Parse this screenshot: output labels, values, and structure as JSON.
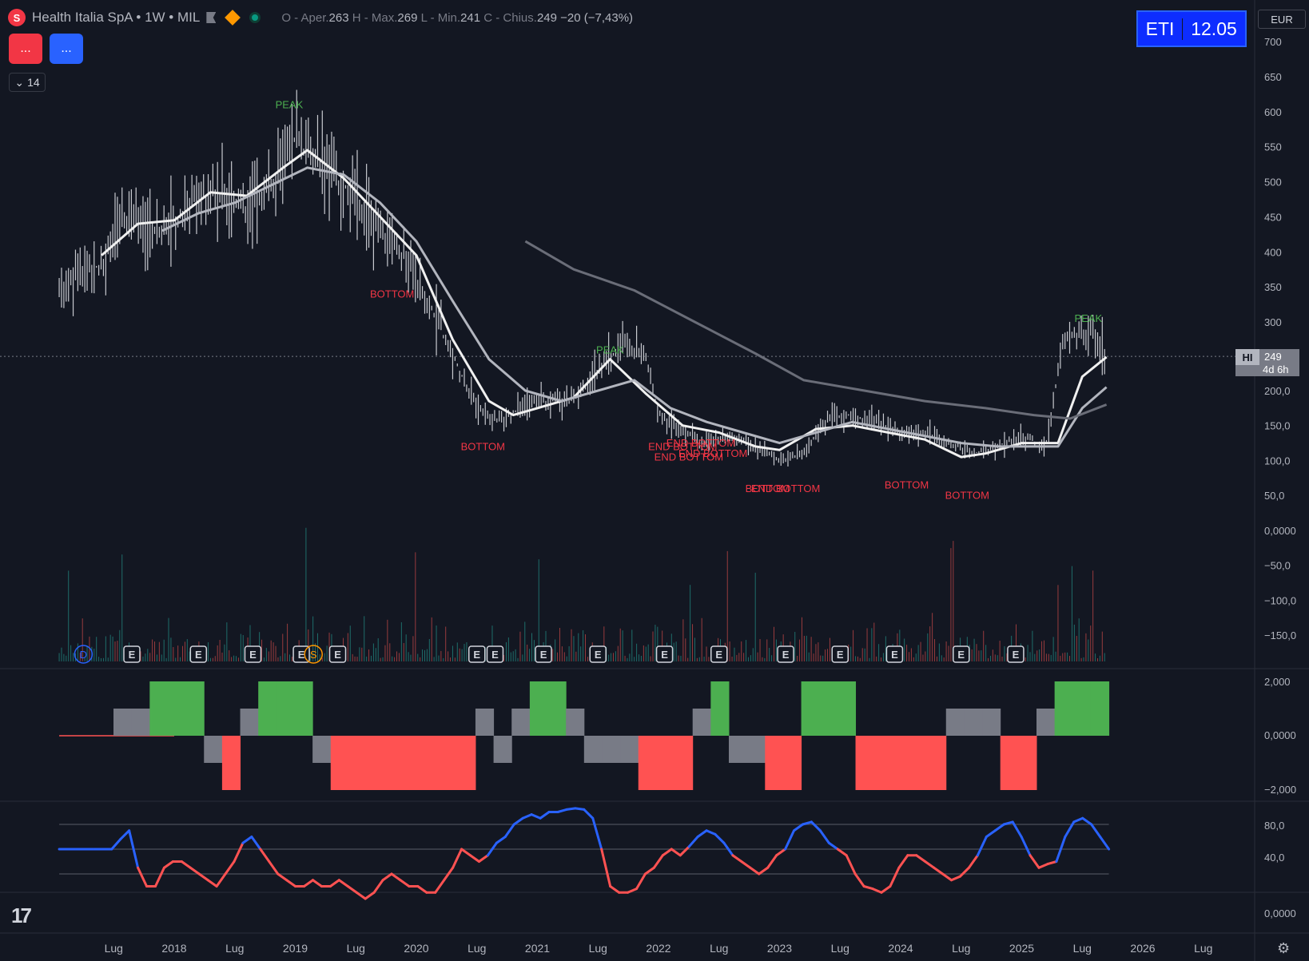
{
  "header": {
    "symbol_label": "Health Italia SpA • 1W • MIL",
    "ohlc_open_label": "O - Aper.",
    "open": "263",
    "ohlc_high_label": "H - Max.",
    "high": "269",
    "ohlc_low_label": "L - Min.",
    "low": "241",
    "ohlc_close_label": "C - Chius.",
    "close": "249",
    "change": "−20 (−7,43%)"
  },
  "buttons": {
    "red": "...",
    "blue": "..."
  },
  "indicator_toggle": "14",
  "eti_box": {
    "label": "ETI",
    "value": "12.05"
  },
  "currency": "EUR",
  "price_label": {
    "tag": "HI",
    "price": "249",
    "countdown": "4d 6h"
  },
  "colors": {
    "bg": "#131722",
    "up": "#4caf50",
    "down": "#ff5252",
    "neutral": "#787b86",
    "blue": "#2962ff",
    "ma_light": "#e6e6e6",
    "ma_mid": "#b2b5be",
    "ma_dark": "#787b86"
  },
  "chart_data": [
    {
      "type": "bar",
      "title": "Health Italia SpA • 1W • MIL",
      "y_ticks": [
        "700",
        "650",
        "600",
        "550",
        "500",
        "450",
        "400",
        "350",
        "300",
        "200,0",
        "150,0",
        "100,0",
        "50,0",
        "0,0000",
        "−50,0",
        "−100,0",
        "−150,0"
      ],
      "x_ticks": [
        "Lug",
        "2018",
        "Lug",
        "2019",
        "Lug",
        "2020",
        "Lug",
        "2021",
        "Lug",
        "2022",
        "Lug",
        "2023",
        "Lug",
        "2024",
        "Lug",
        "2025",
        "Lug",
        "2026",
        "Lug"
      ],
      "series": [
        {
          "name": "price",
          "x": [
            2017.05,
            2017.2,
            2017.4,
            2017.6,
            2017.8,
            2018.0,
            2018.2,
            2018.4,
            2018.6,
            2018.8,
            2019.0,
            2019.1,
            2019.3,
            2019.5,
            2019.7,
            2019.9,
            2020.1,
            2020.3,
            2020.5,
            2020.7,
            2020.9,
            2021.1,
            2021.3,
            2021.5,
            2021.7,
            2021.9,
            2022.0,
            2022.2,
            2022.4,
            2022.6,
            2022.8,
            2023.0,
            2023.2,
            2023.4,
            2023.6,
            2023.8,
            2024.0,
            2024.2,
            2024.4,
            2024.6,
            2024.8,
            2025.0,
            2025.2,
            2025.35,
            2025.4,
            2025.6,
            2025.7
          ],
          "values": [
            340,
            370,
            380,
            450,
            430,
            440,
            480,
            480,
            460,
            490,
            560,
            540,
            510,
            480,
            430,
            390,
            330,
            250,
            175,
            155,
            180,
            185,
            185,
            230,
            270,
            250,
            165,
            140,
            125,
            135,
            120,
            100,
            110,
            160,
            165,
            155,
            140,
            140,
            125,
            110,
            120,
            135,
            120,
            280,
            285,
            280,
            255
          ]
        },
        {
          "name": "ma_fast",
          "x": [
            2017.4,
            2017.7,
            2018.0,
            2018.3,
            2018.6,
            2018.9,
            2019.1,
            2019.4,
            2019.7,
            2020.0,
            2020.3,
            2020.6,
            2020.8,
            2021.0,
            2021.3,
            2021.6,
            2021.9,
            2022.2,
            2022.5,
            2022.8,
            2023.0,
            2023.3,
            2023.6,
            2023.9,
            2024.2,
            2024.5,
            2024.7,
            2025.0,
            2025.3,
            2025.5,
            2025.7
          ],
          "values": [
            395,
            440,
            445,
            485,
            480,
            520,
            545,
            505,
            450,
            395,
            275,
            185,
            165,
            175,
            190,
            245,
            195,
            150,
            140,
            120,
            115,
            145,
            150,
            140,
            130,
            105,
            110,
            125,
            125,
            220,
            250
          ]
        },
        {
          "name": "ma_mid",
          "x": [
            2017.9,
            2018.2,
            2018.5,
            2018.8,
            2019.1,
            2019.4,
            2019.7,
            2020.0,
            2020.3,
            2020.6,
            2020.9,
            2021.2,
            2021.5,
            2021.8,
            2022.1,
            2022.4,
            2022.7,
            2023.0,
            2023.3,
            2023.6,
            2023.9,
            2024.2,
            2024.5,
            2024.8,
            2025.1,
            2025.3,
            2025.5,
            2025.7
          ],
          "values": [
            430,
            455,
            470,
            495,
            520,
            510,
            470,
            415,
            330,
            245,
            200,
            185,
            200,
            215,
            175,
            155,
            140,
            125,
            140,
            155,
            145,
            135,
            125,
            120,
            120,
            120,
            175,
            205
          ]
        },
        {
          "name": "ma_slow",
          "x": [
            2020.9,
            2021.3,
            2021.8,
            2022.3,
            2022.8,
            2023.2,
            2023.7,
            2024.2,
            2024.7,
            2025.1,
            2025.4,
            2025.7
          ],
          "values": [
            415,
            375,
            345,
            300,
            255,
            215,
            200,
            185,
            175,
            165,
            160,
            180
          ]
        }
      ],
      "annotations": [
        {
          "text": "PEAK",
          "x": 2018.95,
          "y": 605,
          "color": "#4caf50"
        },
        {
          "text": "BOTTOM",
          "x": 2019.8,
          "y": 335,
          "color": "#f23645"
        },
        {
          "text": "BOTTOM",
          "x": 2020.55,
          "y": 115,
          "color": "#f23645"
        },
        {
          "text": "PEAK",
          "x": 2021.6,
          "y": 255,
          "color": "#4caf50"
        },
        {
          "text": "END BOTTOM",
          "x": 2022.2,
          "y": 115,
          "color": "#f23645"
        },
        {
          "text": "END BOTTOM",
          "x": 2022.35,
          "y": 120,
          "color": "#f23645"
        },
        {
          "text": "END BOTTOM",
          "x": 2022.25,
          "y": 100,
          "color": "#f23645"
        },
        {
          "text": "END BOTTOM",
          "x": 2022.45,
          "y": 105,
          "color": "#f23645"
        },
        {
          "text": "BOTTOM",
          "x": 2022.9,
          "y": 55,
          "color": "#f23645"
        },
        {
          "text": "END BOTTOM",
          "x": 2023.05,
          "y": 55,
          "color": "#f23645"
        },
        {
          "text": "BOTTOM",
          "x": 2024.05,
          "y": 60,
          "color": "#f23645"
        },
        {
          "text": "BOTTOM",
          "x": 2024.55,
          "y": 45,
          "color": "#f23645"
        },
        {
          "text": "PEAK",
          "x": 2025.55,
          "y": 300,
          "color": "#4caf50"
        }
      ],
      "event_markers": [
        "D",
        "E",
        "E",
        "E",
        "E",
        "S",
        "E",
        "E",
        "E",
        "E",
        "E",
        "E",
        "E",
        "E",
        "E",
        "E",
        "E",
        "E"
      ]
    },
    {
      "type": "bar",
      "y_ticks": [
        "2,000",
        "0,0000",
        "−2,000"
      ],
      "values": [
        0,
        0,
        0,
        1,
        1,
        2,
        2,
        2,
        -1,
        -2,
        1,
        2,
        2,
        2,
        -1,
        -2,
        -2,
        -2,
        -2,
        -2,
        -2,
        -2,
        -2,
        1,
        -1,
        1,
        2,
        2,
        1,
        -1,
        -1,
        -1,
        -2,
        -2,
        -2,
        1,
        2,
        -1,
        -1,
        -2,
        -2,
        2,
        2,
        2,
        -2,
        -2,
        -2,
        -2,
        -2,
        1,
        1,
        1,
        -2,
        -2,
        1,
        2,
        2,
        2
      ],
      "category_colors": {
        "2": "#4caf50",
        "1": "#787b86",
        "-1": "#787b86",
        "-2": "#ff5252"
      }
    },
    {
      "type": "line",
      "y_ticks": [
        "80,0",
        "40,0"
      ],
      "levels": [
        80,
        60,
        40
      ],
      "values": [
        60,
        60,
        60,
        60,
        60,
        60,
        60,
        68,
        75,
        45,
        30,
        30,
        45,
        50,
        50,
        45,
        40,
        35,
        30,
        40,
        50,
        65,
        70,
        60,
        50,
        40,
        35,
        30,
        30,
        35,
        30,
        30,
        35,
        30,
        25,
        20,
        25,
        35,
        40,
        35,
        30,
        30,
        25,
        25,
        35,
        45,
        60,
        55,
        50,
        55,
        65,
        70,
        80,
        85,
        88,
        85,
        90,
        90,
        92,
        93,
        92,
        85,
        60,
        30,
        25,
        25,
        28,
        40,
        45,
        55,
        60,
        55,
        62,
        70,
        75,
        72,
        65,
        55,
        50,
        45,
        40,
        45,
        55,
        60,
        75,
        80,
        82,
        75,
        65,
        60,
        55,
        40,
        30,
        28,
        25,
        30,
        45,
        55,
        55,
        50,
        45,
        40,
        35,
        38,
        45,
        55,
        70,
        75,
        80,
        82,
        70,
        55,
        45,
        48,
        50,
        70,
        82,
        85,
        80,
        70,
        60
      ]
    }
  ],
  "bottom_pane": {
    "y_tick": "0,0000"
  },
  "tv_logo": "17"
}
